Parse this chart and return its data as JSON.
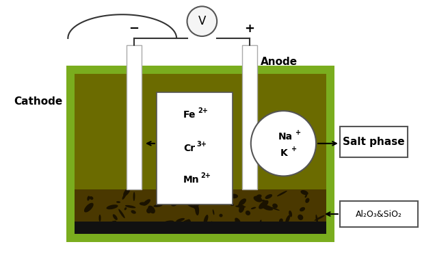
{
  "fig_width": 6.36,
  "fig_height": 3.7,
  "dpi": 100,
  "bg_color": "#ffffff",
  "tank_outer_color": "#7aad1e",
  "tank_inner_color": "#6b6b00",
  "sediment_color": "#4a3800",
  "black_strip_color": "#111111",
  "electrode_color": "#ffffff",
  "cathode_label": "Cathode",
  "anode_label": "Anode",
  "minus_label": "−",
  "plus_label": "+",
  "v_label": "V",
  "salt_phase_label": "Salt phase",
  "al_label": "Al₂O₃&SiO₂",
  "arrow_color": "#000000",
  "label_fontsize": 11,
  "inside_fontsize": 10,
  "sup_fontsize": 7
}
